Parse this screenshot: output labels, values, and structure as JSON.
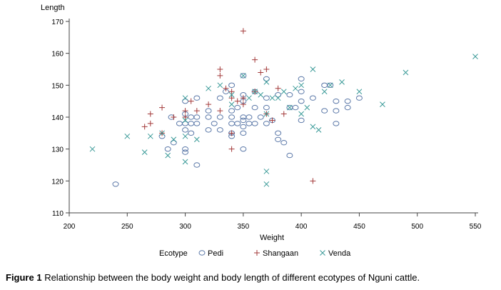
{
  "chart_data": {
    "type": "scatter",
    "xlabel": "Weight",
    "ylabel": "Length",
    "xlim": [
      200,
      550
    ],
    "ylim": [
      110,
      170
    ],
    "xticks": [
      200,
      250,
      300,
      350,
      400,
      450,
      500,
      550
    ],
    "yticks": [
      110,
      120,
      130,
      140,
      150,
      160,
      170
    ],
    "grid": false,
    "legend_title": "Ecotype",
    "legend_position": "bottom",
    "series": [
      {
        "name": "Pedi",
        "marker": "circle",
        "color": "#5b78a8",
        "x": [
          240,
          280,
          285,
          288,
          290,
          295,
          300,
          300,
          300,
          300,
          300,
          300,
          305,
          305,
          305,
          310,
          310,
          310,
          310,
          320,
          320,
          320,
          325,
          330,
          330,
          330,
          335,
          340,
          340,
          340,
          340,
          340,
          340,
          345,
          345,
          350,
          350,
          350,
          350,
          350,
          350,
          350,
          350,
          355,
          355,
          360,
          360,
          360,
          365,
          370,
          370,
          370,
          370,
          375,
          380,
          380,
          380,
          385,
          390,
          390,
          390,
          395,
          400,
          400,
          400,
          400,
          410,
          420,
          420,
          425,
          430,
          430,
          430,
          440,
          440,
          450
        ],
        "y": [
          119,
          134,
          130,
          140,
          132,
          138,
          145,
          141,
          138,
          136,
          130,
          129,
          140,
          138,
          135,
          146,
          140,
          138,
          125,
          142,
          140,
          136,
          138,
          146,
          140,
          136,
          148,
          150,
          142,
          140,
          138,
          135,
          134,
          143,
          138,
          153,
          147,
          145,
          140,
          139,
          137,
          135,
          130,
          140,
          138,
          148,
          143,
          138,
          140,
          152,
          146,
          143,
          138,
          139,
          147,
          135,
          133,
          132,
          147,
          143,
          128,
          143,
          152,
          148,
          145,
          139,
          146,
          150,
          142,
          150,
          145,
          142,
          138,
          145,
          143,
          146
        ]
      },
      {
        "name": "Shangaan",
        "marker": "plus",
        "color": "#a33a3a",
        "x": [
          265,
          270,
          270,
          280,
          280,
          290,
          300,
          300,
          305,
          310,
          320,
          330,
          330,
          330,
          335,
          340,
          340,
          340,
          340,
          345,
          350,
          350,
          350,
          360,
          360,
          365,
          370,
          370,
          375,
          380,
          385,
          410
        ],
        "y": [
          137,
          141,
          138,
          135,
          143,
          140,
          142,
          140,
          145,
          142,
          144,
          155,
          153,
          142,
          149,
          148,
          146,
          135,
          130,
          145,
          167,
          146,
          144,
          158,
          148,
          154,
          155,
          141,
          139,
          149,
          141,
          120
        ]
      },
      {
        "name": "Venda",
        "marker": "x",
        "color": "#3a9a98",
        "x": [
          220,
          250,
          265,
          270,
          280,
          285,
          290,
          300,
          300,
          300,
          300,
          310,
          320,
          330,
          340,
          340,
          350,
          355,
          360,
          365,
          370,
          370,
          370,
          370,
          375,
          380,
          385,
          390,
          395,
          400,
          400,
          405,
          410,
          410,
          415,
          420,
          425,
          435,
          450,
          470,
          490,
          550
        ],
        "y": [
          130,
          134,
          129,
          134,
          135,
          128,
          133,
          146,
          139,
          134,
          126,
          133,
          149,
          150,
          147,
          144,
          153,
          146,
          148,
          147,
          151,
          141,
          123,
          119,
          146,
          146,
          148,
          143,
          149,
          150,
          141,
          143,
          155,
          137,
          136,
          148,
          150,
          151,
          148,
          144,
          154,
          159
        ]
      }
    ]
  },
  "caption": {
    "label": "Figure 1",
    "text": " Relationship between the body weight and body length of different ecotypes of Nguni cattle."
  }
}
